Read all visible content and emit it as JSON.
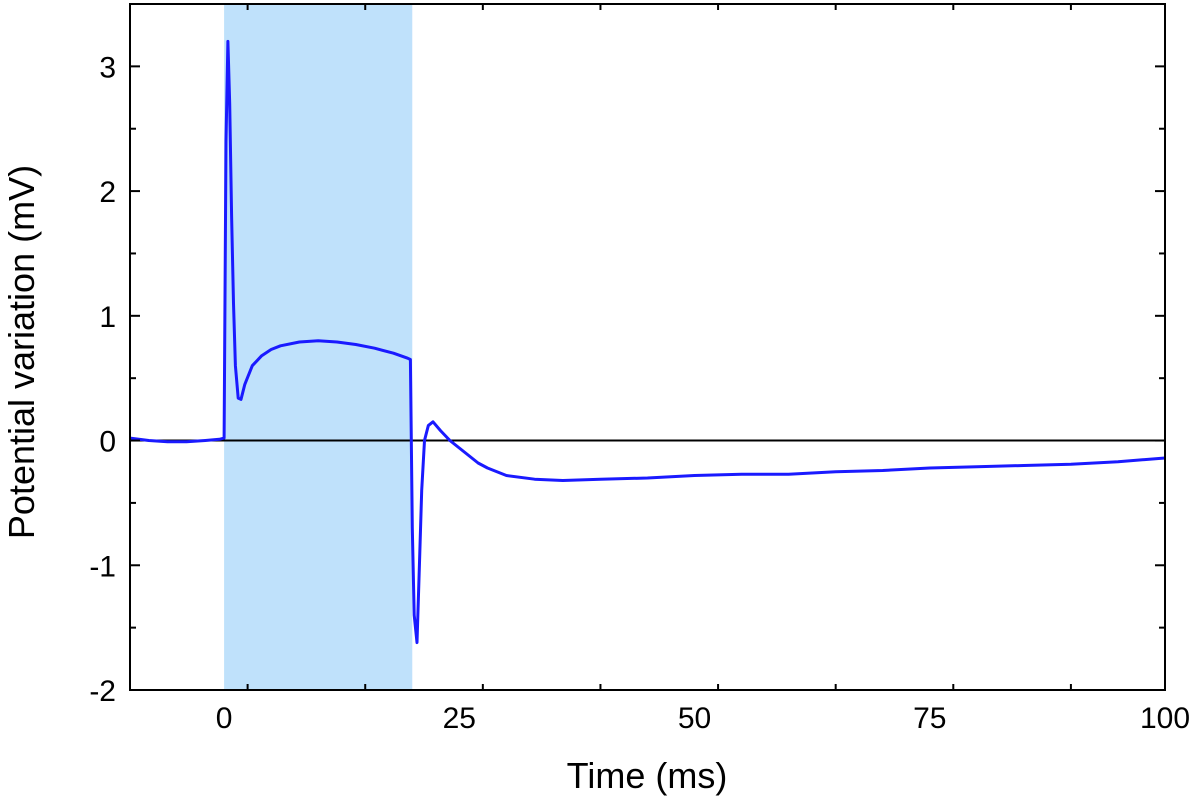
{
  "chart_data": {
    "type": "line",
    "title": "",
    "xlabel": "Time (ms)",
    "ylabel": "Potential variation (mV)",
    "xlim": [
      -10,
      100
    ],
    "ylim": [
      -2,
      3.5
    ],
    "x_ticks": [
      0,
      25,
      50,
      75,
      100
    ],
    "x_tick_labels": [
      "0",
      "25",
      "50",
      "75",
      "100"
    ],
    "y_ticks": [
      -2,
      -1,
      0,
      1,
      2,
      3
    ],
    "y_tick_labels": [
      "-2",
      "-1",
      "0",
      "1",
      "2",
      "3"
    ],
    "grid": false,
    "legend": "none",
    "zero_reference_line": 0,
    "highlight_region": {
      "x_start": 0,
      "x_end": 20,
      "color": "#bfe1fb"
    },
    "series": [
      {
        "color": "#1a1aff",
        "x": [
          -10,
          -8,
          -6,
          -4,
          -2,
          -0.5,
          0,
          0.2,
          0.4,
          0.6,
          0.8,
          1.0,
          1.2,
          1.5,
          1.8,
          2.2,
          3,
          4,
          5,
          6,
          8,
          10,
          12,
          14,
          16,
          18,
          19.5,
          19.8,
          20.0,
          20.2,
          20.5,
          20.8,
          21.0,
          21.3,
          21.7,
          22.2,
          23,
          24,
          25,
          26,
          27,
          28,
          30,
          33,
          36,
          40,
          45,
          50,
          55,
          60,
          65,
          70,
          75,
          80,
          85,
          90,
          95,
          100
        ],
        "y": [
          0.02,
          0.0,
          -0.01,
          -0.01,
          0.0,
          0.01,
          0.02,
          2.4,
          3.2,
          2.7,
          1.8,
          1.1,
          0.6,
          0.34,
          0.33,
          0.45,
          0.6,
          0.68,
          0.73,
          0.76,
          0.79,
          0.8,
          0.79,
          0.77,
          0.74,
          0.7,
          0.66,
          0.65,
          -0.7,
          -1.4,
          -1.62,
          -0.9,
          -0.4,
          0.0,
          0.12,
          0.15,
          0.08,
          0.0,
          -0.06,
          -0.12,
          -0.18,
          -0.22,
          -0.28,
          -0.31,
          -0.32,
          -0.31,
          -0.3,
          -0.28,
          -0.27,
          -0.27,
          -0.25,
          -0.24,
          -0.22,
          -0.21,
          -0.2,
          -0.19,
          -0.17,
          -0.14
        ]
      }
    ]
  }
}
